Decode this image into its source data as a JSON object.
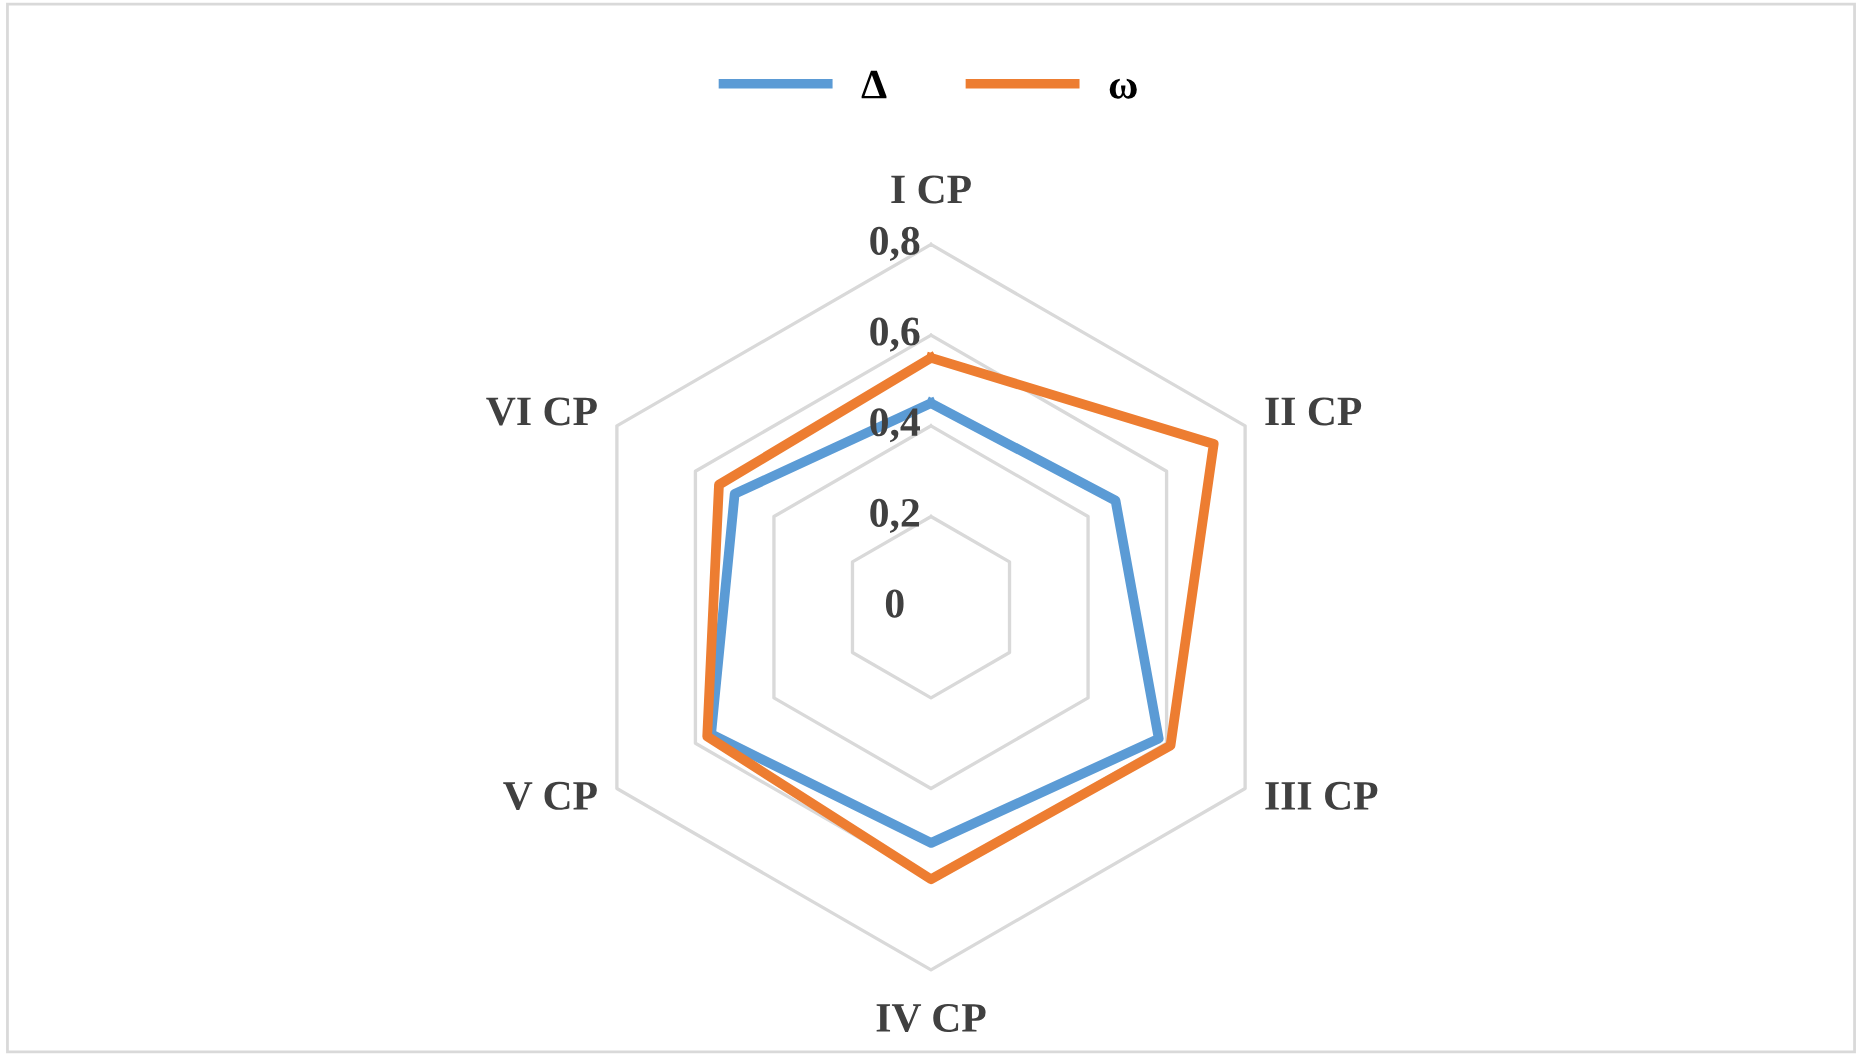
{
  "chart_data": {
    "type": "radar",
    "categories": [
      "I CP",
      "II CP",
      "III CP",
      "IV CP",
      "V CP",
      "VI CP"
    ],
    "series": [
      {
        "name": "Δ",
        "color": "#5b9bd5",
        "values": [
          0.45,
          0.47,
          0.58,
          0.52,
          0.56,
          0.5
        ]
      },
      {
        "name": "ω",
        "color": "#ed7d31",
        "values": [
          0.55,
          0.72,
          0.61,
          0.6,
          0.57,
          0.54
        ]
      }
    ],
    "ylim": [
      0,
      0.8
    ],
    "yticks": [
      0,
      {
        "value": 0.2,
        "label": "0,2"
      },
      {
        "value": 0.4,
        "label": "0,4"
      },
      {
        "value": 0.6,
        "label": "0,6"
      },
      {
        "value": 0.8,
        "label": "0,8"
      }
    ],
    "grid": true,
    "legend": "top",
    "marker": "none",
    "line_style": "solid"
  }
}
